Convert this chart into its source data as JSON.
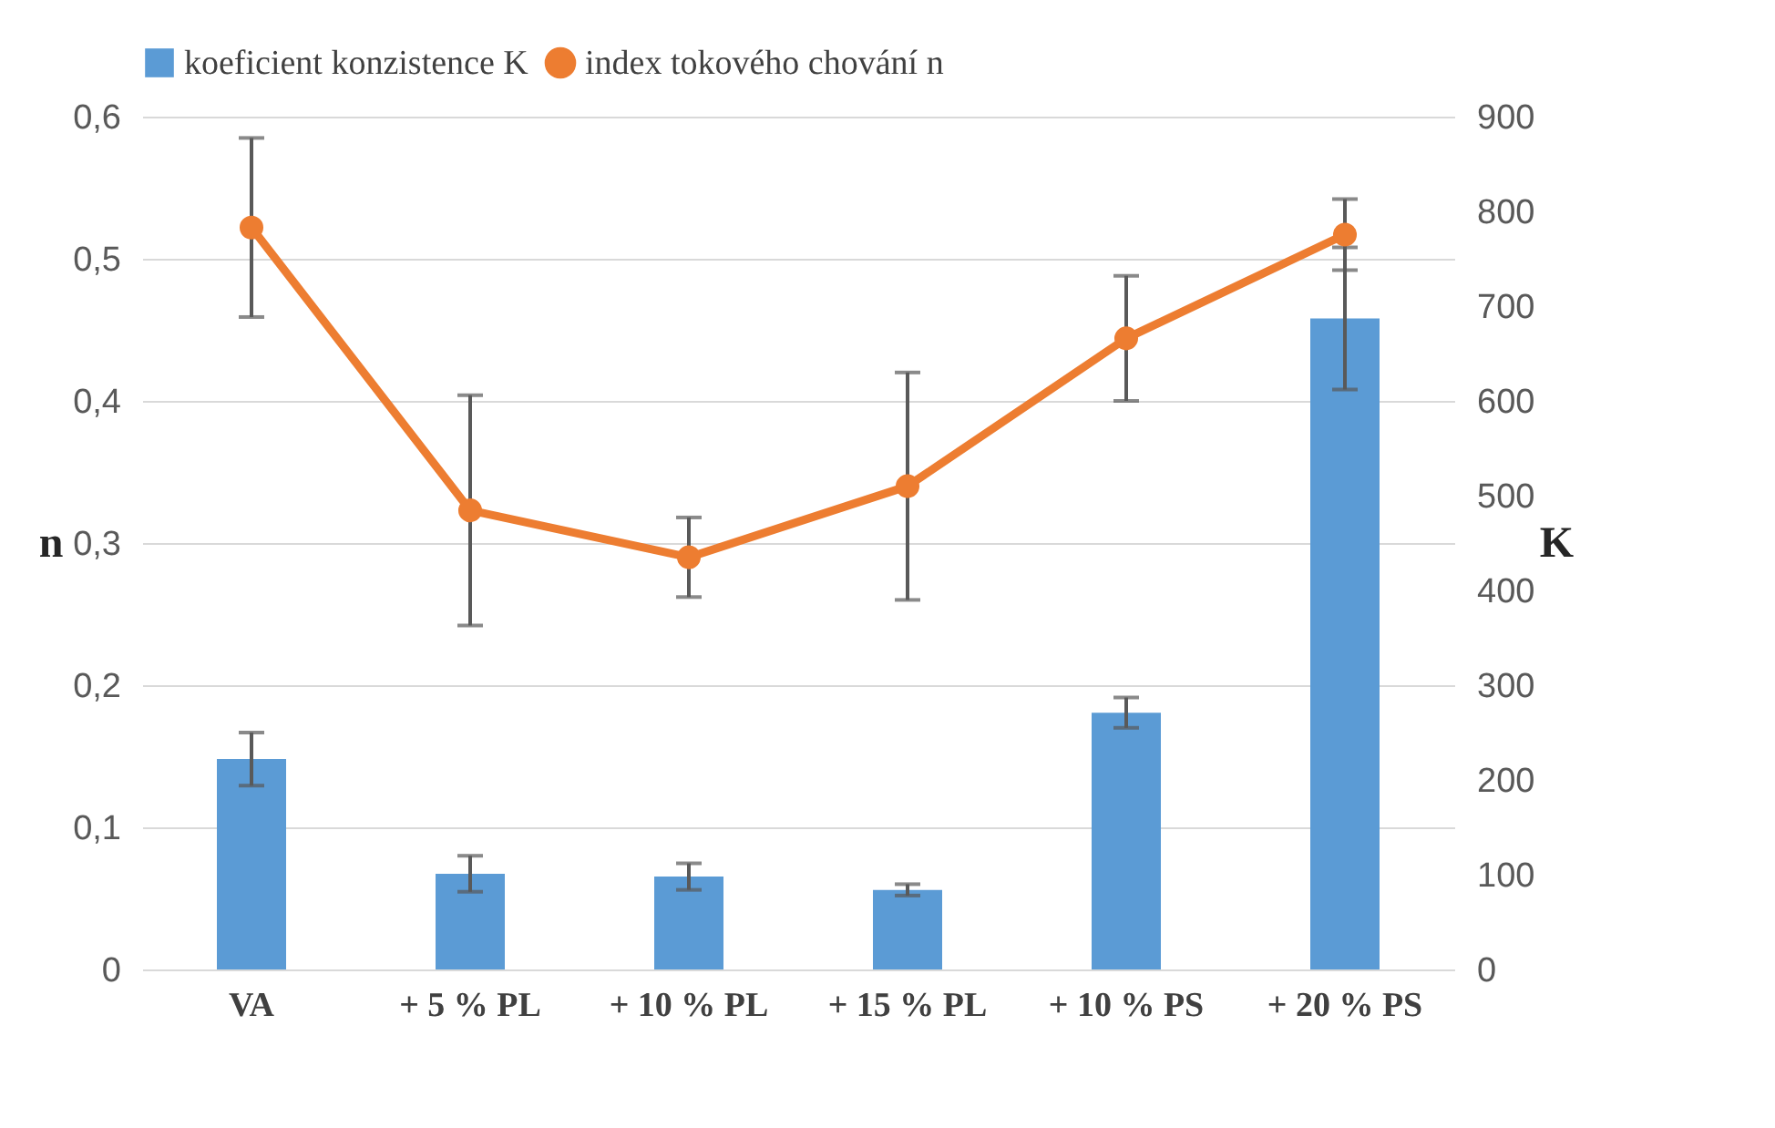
{
  "chart_data": {
    "type": "bar",
    "categories": [
      "VA",
      "+ 5 % PL",
      "+ 10 % PL",
      "+ 15 % PL",
      "+ 10 % PS",
      "+ 20 % PS"
    ],
    "series": [
      {
        "name": "koeficient konzistence K",
        "axis": "y2",
        "color": "#5b9bd5",
        "values": [
          222,
          101,
          98,
          84,
          271,
          687
        ],
        "errors": [
          28,
          19,
          14,
          6,
          16,
          75
        ]
      },
      {
        "name": "index tokového chování n",
        "type": "line",
        "axis": "y",
        "color": "#ed7d31",
        "values": [
          0.522,
          0.323,
          0.29,
          0.34,
          0.444,
          0.517
        ],
        "errors": [
          0.063,
          0.081,
          0.028,
          0.08,
          0.044,
          0.025
        ]
      }
    ],
    "ylabel": "n",
    "y2label": "K",
    "ylim": [
      0,
      0.6
    ],
    "yticks": [
      0,
      {
        "value": 0.1,
        "label": "0,1"
      },
      {
        "value": 0.2,
        "label": "0,2"
      },
      {
        "value": 0.3,
        "label": "0,3"
      },
      {
        "value": 0.4,
        "label": "0,4"
      },
      {
        "value": 0.5,
        "label": "0,5"
      },
      {
        "value": 0.6,
        "label": "0,6"
      }
    ],
    "y2lim": [
      0,
      900
    ],
    "y2ticks": [
      0,
      100,
      200,
      300,
      400,
      500,
      600,
      700,
      800,
      900
    ],
    "grid": "y",
    "legend": "top",
    "marker": "circle",
    "line_style": "solid"
  }
}
